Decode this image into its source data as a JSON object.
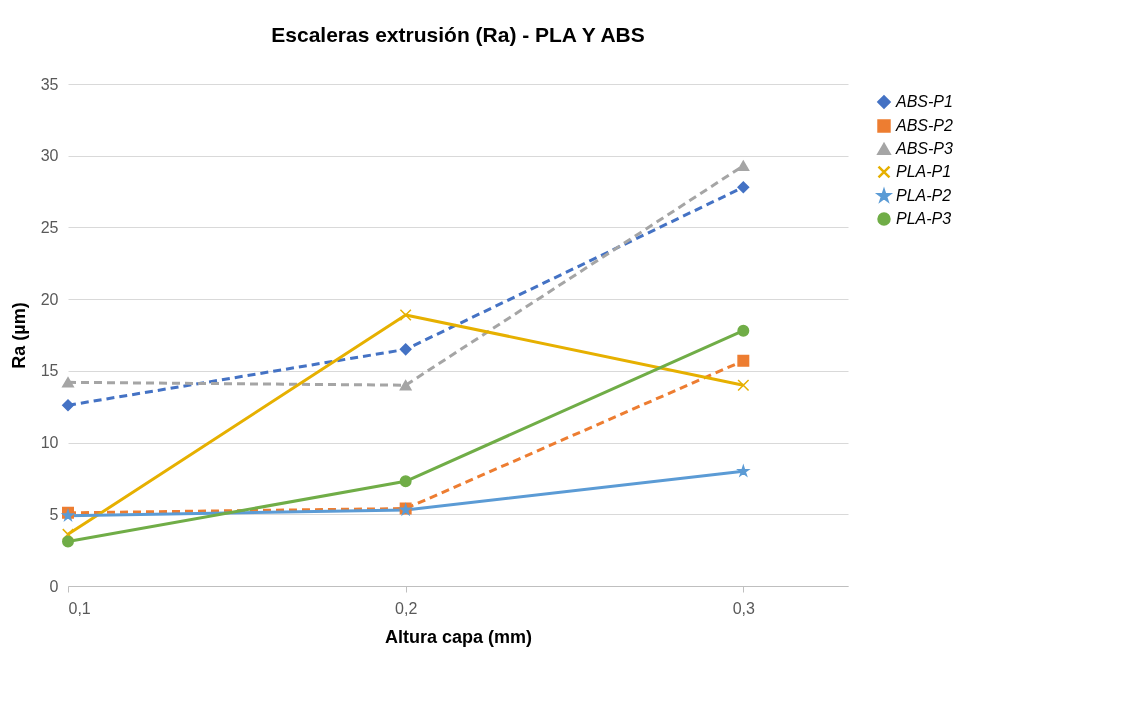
{
  "chart_data": {
    "type": "line",
    "title": "Escaleras extrusión (Ra)  - PLA Y ABS",
    "xlabel": "Altura capa (mm)",
    "ylabel": "Ra (µm)",
    "x": [
      0.1,
      0.2,
      0.3
    ],
    "xlim": [
      0.1,
      0.331
    ],
    "xticks": [
      {
        "value": 0.1,
        "label": "0,1"
      },
      {
        "value": 0.2,
        "label": "0,2"
      },
      {
        "value": 0.3,
        "label": "0,3"
      }
    ],
    "ylim": [
      0,
      35
    ],
    "yticks": [
      0,
      5,
      10,
      15,
      20,
      25,
      30,
      35
    ],
    "grid": "y",
    "legend": "right",
    "series": [
      {
        "name": "ABS-P1",
        "color": "#4472c4",
        "values": [
          12.6,
          16.5,
          27.8
        ],
        "marker": "diamond",
        "line_style": "dashed"
      },
      {
        "name": "ABS-P2",
        "color": "#ed7d31",
        "values": [
          5.1,
          5.4,
          15.7
        ],
        "marker": "square",
        "line_style": "dashed"
      },
      {
        "name": "ABS-P3",
        "color": "#a5a5a5",
        "values": [
          14.2,
          14.0,
          29.3
        ],
        "marker": "triangle",
        "line_style": "dashed"
      },
      {
        "name": "PLA-P1",
        "color": "#e6b000",
        "values": [
          3.6,
          18.9,
          14.0
        ],
        "marker": "cross",
        "line_style": "solid"
      },
      {
        "name": "PLA-P2",
        "color": "#5b9bd5",
        "values": [
          4.9,
          5.3,
          8.0
        ],
        "marker": "star",
        "line_style": "solid"
      },
      {
        "name": "PLA-P3",
        "color": "#70ad47",
        "values": [
          3.1,
          7.3,
          17.8
        ],
        "marker": "circle",
        "line_style": "solid"
      }
    ]
  }
}
